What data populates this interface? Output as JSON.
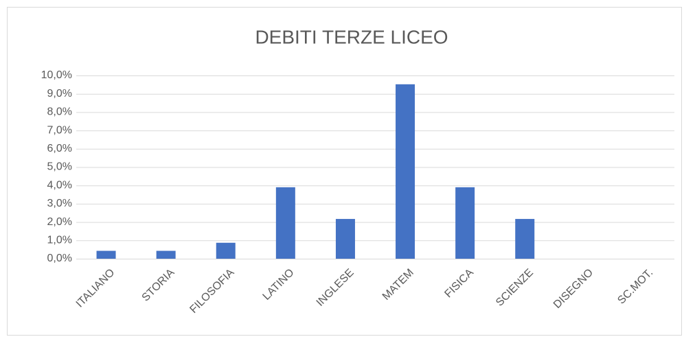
{
  "chart_data": {
    "type": "bar",
    "title": "DEBITI TERZE LICEO",
    "categories": [
      "ITALIANO",
      "STORIA",
      "FILOSOFIA",
      "LATINO",
      "INGLESE",
      "MATEM",
      "FISICA",
      "SCIENZE",
      "DISEGNO",
      "SC.MOT."
    ],
    "values": [
      0.43,
      0.43,
      0.87,
      3.9,
      2.17,
      9.52,
      3.9,
      2.17,
      0,
      0
    ],
    "color": "#4472c4",
    "ylim": [
      0,
      10
    ],
    "yticks": [
      {
        "value": 0,
        "label": "0,0%"
      },
      {
        "value": 1,
        "label": "1,0%"
      },
      {
        "value": 2,
        "label": "2,0%"
      },
      {
        "value": 3,
        "label": "3,0%"
      },
      {
        "value": 4,
        "label": "4,0%"
      },
      {
        "value": 5,
        "label": "5,0%"
      },
      {
        "value": 6,
        "label": "6,0%"
      },
      {
        "value": 7,
        "label": "7,0%"
      },
      {
        "value": 8,
        "label": "8,0%"
      },
      {
        "value": 9,
        "label": "9,0%"
      },
      {
        "value": 10,
        "label": "10,0%"
      }
    ],
    "grid": true
  }
}
